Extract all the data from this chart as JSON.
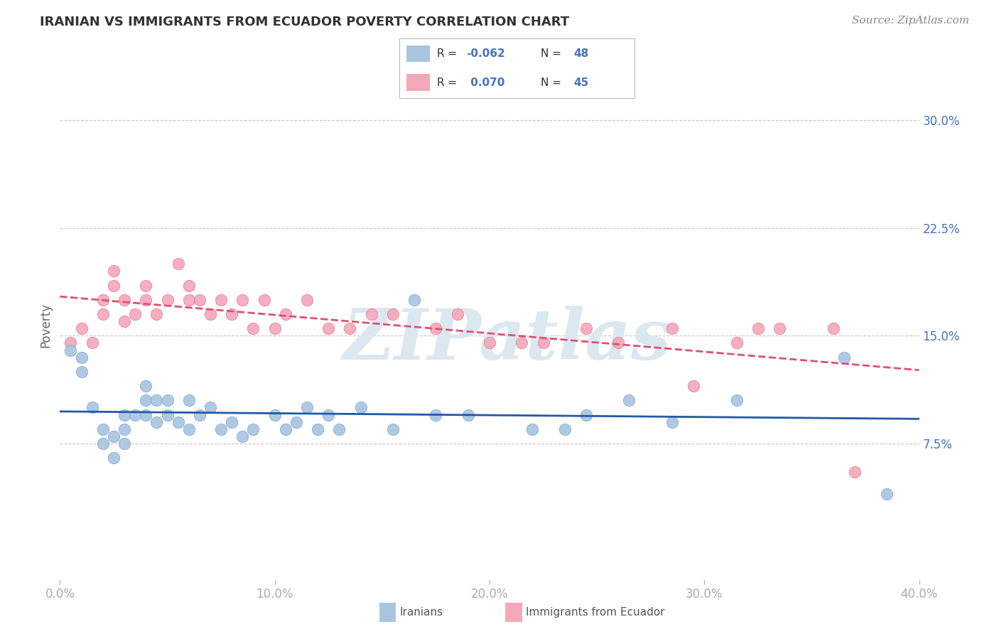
{
  "title": "IRANIAN VS IMMIGRANTS FROM ECUADOR POVERTY CORRELATION CHART",
  "source": "Source: ZipAtlas.com",
  "ylabel": "Poverty",
  "xmin": 0.0,
  "xmax": 0.4,
  "ymin": -0.02,
  "ymax": 0.335,
  "yticks": [
    0.075,
    0.15,
    0.225,
    0.3
  ],
  "ytick_labels": [
    "7.5%",
    "15.0%",
    "22.5%",
    "30.0%"
  ],
  "xticks": [
    0.0,
    0.1,
    0.2,
    0.3,
    0.4
  ],
  "xtick_labels": [
    "0.0%",
    "10.0%",
    "20.0%",
    "30.0%",
    "40.0%"
  ],
  "iranians": {
    "name": "Iranians",
    "color": "#a8c4e0",
    "edge_color": "#6a9fcc",
    "R": -0.062,
    "N": 48,
    "trend_color": "#2458a8",
    "x": [
      0.005,
      0.01,
      0.01,
      0.015,
      0.02,
      0.02,
      0.025,
      0.025,
      0.03,
      0.03,
      0.03,
      0.035,
      0.04,
      0.04,
      0.04,
      0.045,
      0.045,
      0.05,
      0.05,
      0.055,
      0.06,
      0.06,
      0.065,
      0.07,
      0.075,
      0.08,
      0.085,
      0.09,
      0.1,
      0.105,
      0.11,
      0.115,
      0.12,
      0.125,
      0.13,
      0.14,
      0.155,
      0.165,
      0.175,
      0.19,
      0.22,
      0.235,
      0.245,
      0.265,
      0.285,
      0.315,
      0.365,
      0.385
    ],
    "y": [
      0.14,
      0.135,
      0.125,
      0.1,
      0.085,
      0.075,
      0.08,
      0.065,
      0.095,
      0.085,
      0.075,
      0.095,
      0.115,
      0.105,
      0.095,
      0.105,
      0.09,
      0.105,
      0.095,
      0.09,
      0.105,
      0.085,
      0.095,
      0.1,
      0.085,
      0.09,
      0.08,
      0.085,
      0.095,
      0.085,
      0.09,
      0.1,
      0.085,
      0.095,
      0.085,
      0.1,
      0.085,
      0.175,
      0.095,
      0.095,
      0.085,
      0.085,
      0.095,
      0.105,
      0.09,
      0.105,
      0.135,
      0.04
    ]
  },
  "ecuador": {
    "name": "Immigrants from Ecuador",
    "color": "#f4a7b9",
    "edge_color": "#e07090",
    "R": 0.07,
    "N": 45,
    "trend_color": "#e05070",
    "x": [
      0.005,
      0.01,
      0.015,
      0.02,
      0.02,
      0.025,
      0.025,
      0.03,
      0.03,
      0.035,
      0.04,
      0.04,
      0.045,
      0.05,
      0.055,
      0.06,
      0.06,
      0.065,
      0.07,
      0.075,
      0.08,
      0.085,
      0.09,
      0.095,
      0.1,
      0.105,
      0.115,
      0.125,
      0.135,
      0.145,
      0.155,
      0.175,
      0.185,
      0.2,
      0.215,
      0.225,
      0.245,
      0.26,
      0.285,
      0.295,
      0.315,
      0.325,
      0.335,
      0.36,
      0.37
    ],
    "y": [
      0.145,
      0.155,
      0.145,
      0.175,
      0.165,
      0.185,
      0.195,
      0.175,
      0.16,
      0.165,
      0.185,
      0.175,
      0.165,
      0.175,
      0.2,
      0.185,
      0.175,
      0.175,
      0.165,
      0.175,
      0.165,
      0.175,
      0.155,
      0.175,
      0.155,
      0.165,
      0.175,
      0.155,
      0.155,
      0.165,
      0.165,
      0.155,
      0.165,
      0.145,
      0.145,
      0.145,
      0.155,
      0.145,
      0.155,
      0.115,
      0.145,
      0.155,
      0.155,
      0.155,
      0.055
    ]
  },
  "legend_R_color": "#4472c4",
  "background_color": "#ffffff",
  "grid_color": "#c8c8c8",
  "watermark": "ZIPatlas",
  "watermark_color": "#dce8f0",
  "title_fontsize": 13,
  "source_fontsize": 11,
  "tick_fontsize": 12,
  "ylabel_fontsize": 12
}
